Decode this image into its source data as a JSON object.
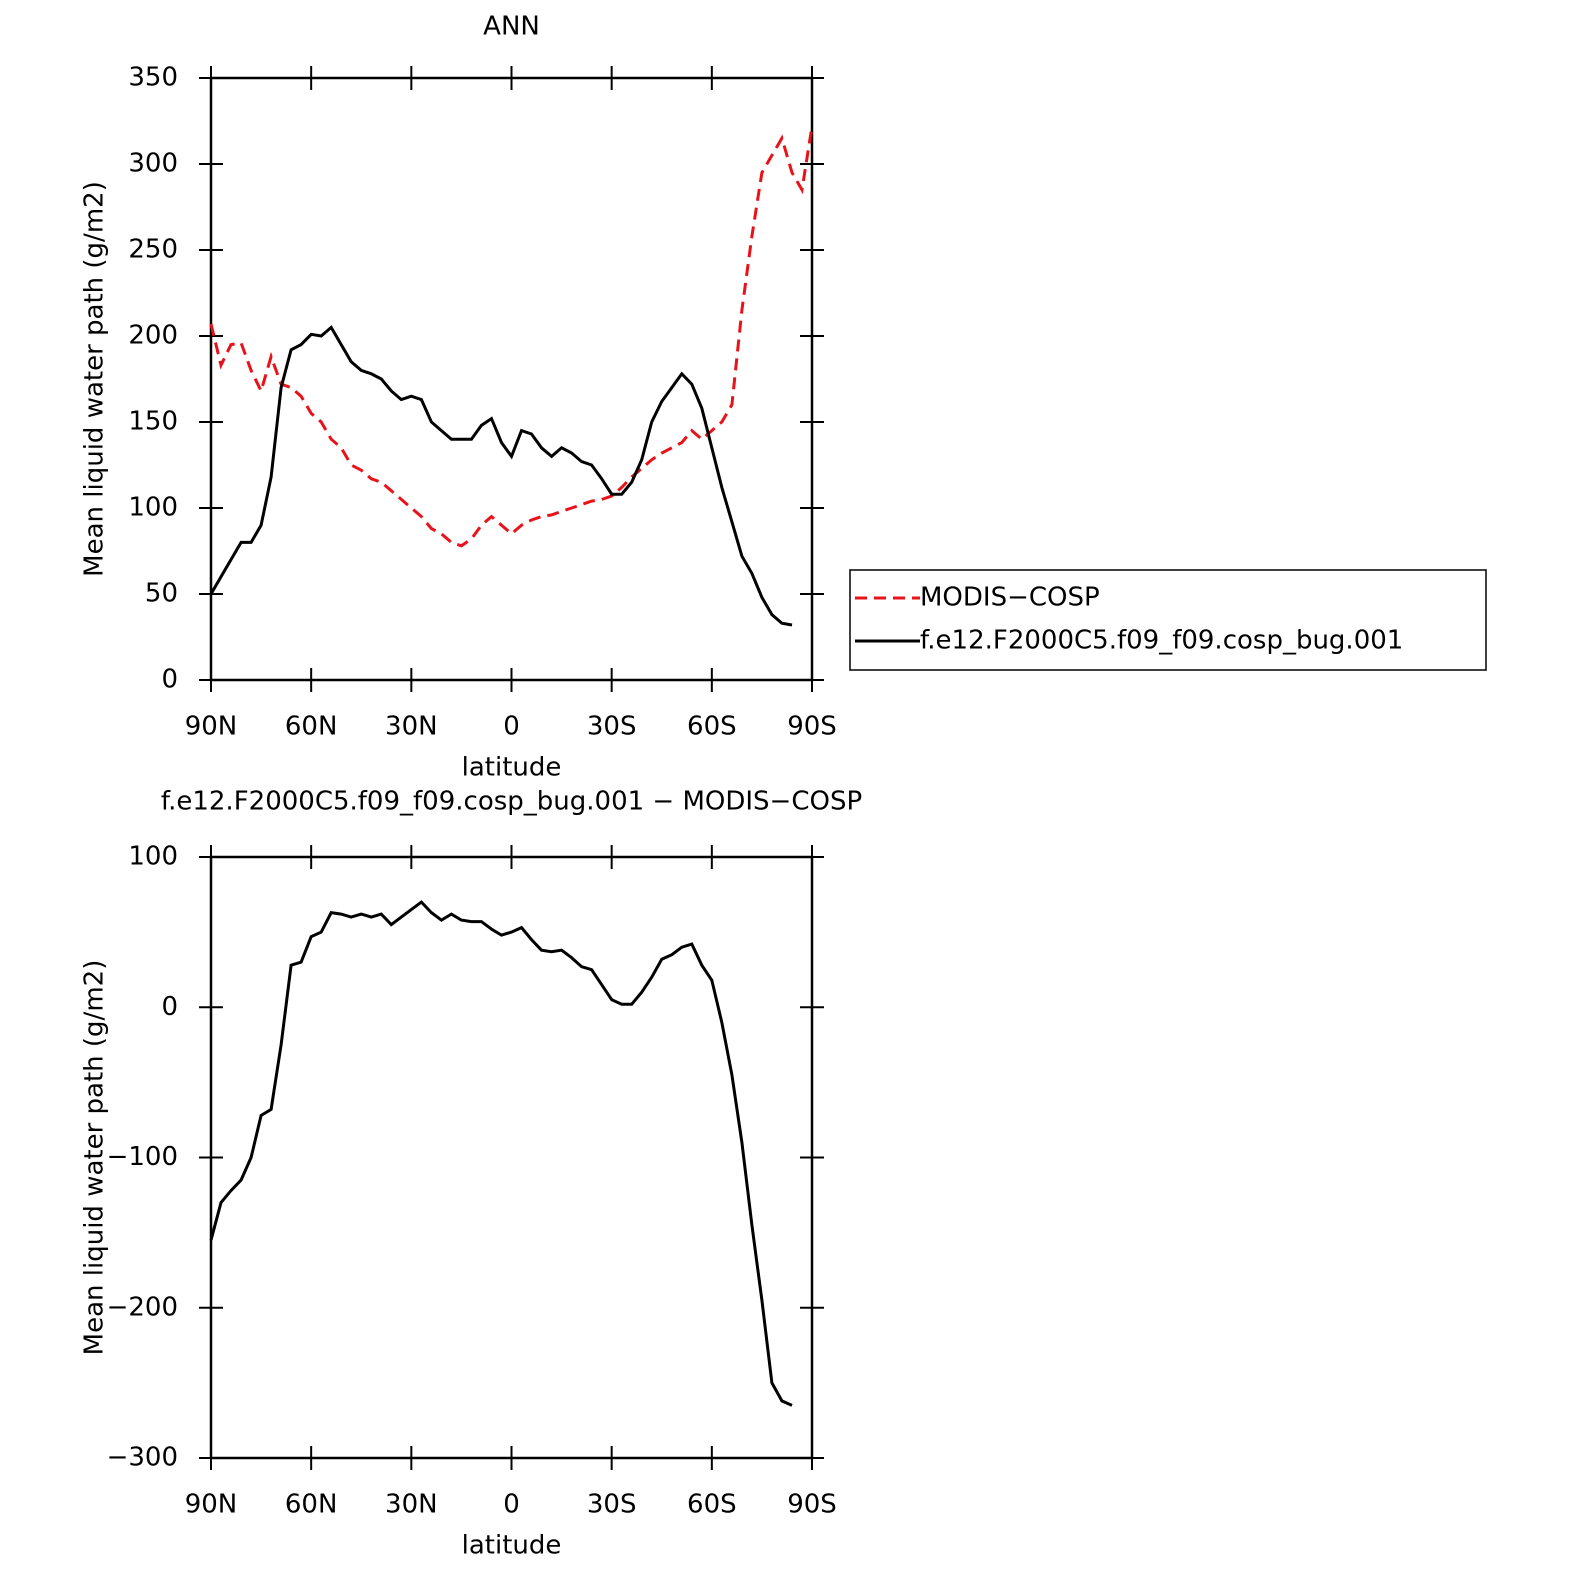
{
  "chart_data": [
    {
      "type": "line",
      "title": "ANN",
      "xlabel": "latitude",
      "ylabel": "Mean liquid water path (g/m2)",
      "x": [
        90,
        87,
        84,
        81,
        78,
        75,
        72,
        69,
        66,
        63,
        60,
        57,
        54,
        51,
        48,
        45,
        42,
        39,
        36,
        33,
        30,
        27,
        24,
        21,
        18,
        15,
        12,
        9,
        6,
        3,
        0,
        -3,
        -6,
        -9,
        -12,
        -15,
        -18,
        -21,
        -24,
        -27,
        -30,
        -33,
        -36,
        -39,
        -42,
        -45,
        -48,
        -51,
        -54,
        -57,
        -60,
        -63,
        -66,
        -69,
        -72,
        -75,
        -78,
        -81,
        -84,
        -87,
        -90
      ],
      "xlim": [
        90,
        -90
      ],
      "xticks": [
        {
          "value": 90,
          "label": "90N"
        },
        {
          "value": 60,
          "label": "60N"
        },
        {
          "value": 30,
          "label": "30N"
        },
        0,
        {
          "value": -30,
          "label": "30S"
        },
        {
          "value": -60,
          "label": "60S"
        },
        {
          "value": -90,
          "label": "90S"
        }
      ],
      "ylim": [
        0,
        350
      ],
      "yticks": [
        0,
        50,
        100,
        150,
        200,
        250,
        300,
        350
      ],
      "legend": "outside right",
      "series": [
        {
          "name": "MODIS−COSP",
          "color": "#e8131a",
          "style": "dashed",
          "values": [
            207,
            183,
            195,
            196,
            180,
            168,
            188,
            172,
            170,
            165,
            155,
            150,
            140,
            135,
            125,
            122,
            117,
            115,
            110,
            105,
            100,
            95,
            88,
            85,
            80,
            78,
            82,
            90,
            95,
            90,
            85,
            90,
            93,
            95,
            96,
            98,
            100,
            102,
            104,
            105,
            107,
            112,
            118,
            123,
            128,
            132,
            135,
            138,
            145,
            140,
            145,
            150,
            160,
            215,
            258,
            295,
            305,
            315,
            295,
            285,
            322
          ]
        },
        {
          "name": "f.e12.F2000C5.f09_f09.cosp_bug.001",
          "color": "#000000",
          "style": "solid",
          "values": [
            50,
            60,
            70,
            80,
            80,
            90,
            118,
            170,
            192,
            195,
            201,
            200,
            205,
            195,
            185,
            180,
            178,
            175,
            168,
            163,
            165,
            163,
            150,
            145,
            140,
            140,
            140,
            148,
            152,
            138,
            130,
            145,
            143,
            135,
            130,
            135,
            132,
            127,
            125,
            117,
            108,
            108,
            115,
            128,
            150,
            162,
            170,
            178,
            172,
            158,
            135,
            112,
            92,
            72,
            62,
            48,
            38,
            33,
            32,
            null,
            null
          ]
        }
      ]
    },
    {
      "type": "line",
      "title": "f.e12.F2000C5.f09_f09.cosp_bug.001 − MODIS−COSP",
      "xlabel": "latitude",
      "ylabel": "Mean liquid water path (g/m2)",
      "x": [
        90,
        87,
        84,
        81,
        78,
        75,
        72,
        69,
        66,
        63,
        60,
        57,
        54,
        51,
        48,
        45,
        42,
        39,
        36,
        33,
        30,
        27,
        24,
        21,
        18,
        15,
        12,
        9,
        6,
        3,
        0,
        -3,
        -6,
        -9,
        -12,
        -15,
        -18,
        -21,
        -24,
        -27,
        -30,
        -33,
        -36,
        -39,
        -42,
        -45,
        -48,
        -51,
        -54,
        -57,
        -60,
        -63,
        -66,
        -69,
        -72,
        -75,
        -78,
        -81,
        -84,
        -87,
        -90
      ],
      "xlim": [
        90,
        -90
      ],
      "xticks": [
        {
          "value": 90,
          "label": "90N"
        },
        {
          "value": 60,
          "label": "60N"
        },
        {
          "value": 30,
          "label": "30N"
        },
        0,
        {
          "value": -30,
          "label": "30S"
        },
        {
          "value": -60,
          "label": "60S"
        },
        {
          "value": -90,
          "label": "90S"
        }
      ],
      "ylim": [
        -300,
        100
      ],
      "yticks": [
        {
          "value": -300,
          "label": "−300"
        },
        {
          "value": -200,
          "label": "−200"
        },
        {
          "value": -100,
          "label": "−100"
        },
        0,
        100
      ],
      "series": [
        {
          "color": "#000000",
          "style": "solid",
          "values": [
            -155,
            -130,
            -122,
            -115,
            -100,
            -72,
            -68,
            -25,
            28,
            30,
            47,
            50,
            63,
            62,
            60,
            62,
            60,
            62,
            55,
            60,
            65,
            70,
            63,
            58,
            62,
            58,
            57,
            57,
            52,
            48,
            50,
            53,
            45,
            38,
            37,
            38,
            33,
            27,
            25,
            15,
            5,
            2,
            2,
            10,
            20,
            32,
            35,
            40,
            42,
            28,
            18,
            -10,
            -45,
            -90,
            -145,
            -195,
            -250,
            -262,
            -265,
            null,
            null
          ]
        }
      ]
    }
  ]
}
